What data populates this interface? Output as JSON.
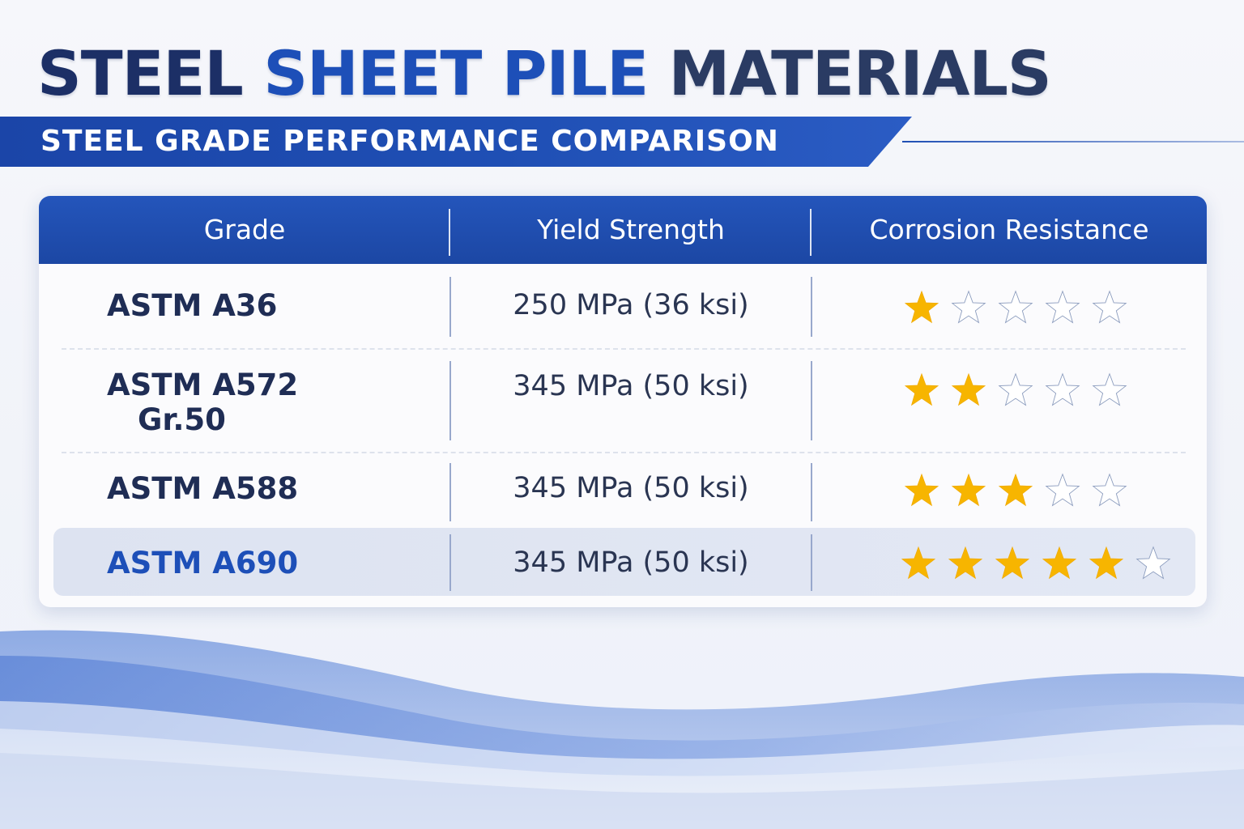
{
  "title": {
    "word1": "STEEL",
    "word2": "SHEET PILE",
    "word3": "MATERIALS"
  },
  "subtitle": "STEEL GRADE PERFORMANCE COMPARISON",
  "table": {
    "headers": [
      "Grade",
      "Yield Strength",
      "Corrosion Resistance"
    ],
    "rows": [
      {
        "grade_line1": "ASTM A36",
        "grade_line2": "",
        "yield": "250 MPa (36 ksi)",
        "corrosion_stars": 1,
        "max_stars": 5,
        "highlighted": false
      },
      {
        "grade_line1": "ASTM A572",
        "grade_line2": "Gr.50",
        "yield": "345 MPa (50 ksi)",
        "corrosion_stars": 2,
        "max_stars": 5,
        "highlighted": false
      },
      {
        "grade_line1": "ASTM A588",
        "grade_line2": "",
        "yield": "345 MPa (50 ksi)",
        "corrosion_stars": 3,
        "max_stars": 5,
        "highlighted": false
      },
      {
        "grade_line1": "ASTM A690",
        "grade_line2": "",
        "yield": "345 MPa (50 ksi)",
        "corrosion_stars": 5,
        "max_stars": 6,
        "highlighted": true
      }
    ]
  },
  "colors": {
    "primary_blue": "#1d4fb8",
    "header_blue": "#1c47a4",
    "title_navy": "#1c2f66",
    "star_gold": "#f7b500",
    "highlight_row": "#dde3f1"
  },
  "icons": {
    "filled_star": "star-filled-icon",
    "empty_star": "star-empty-icon"
  }
}
